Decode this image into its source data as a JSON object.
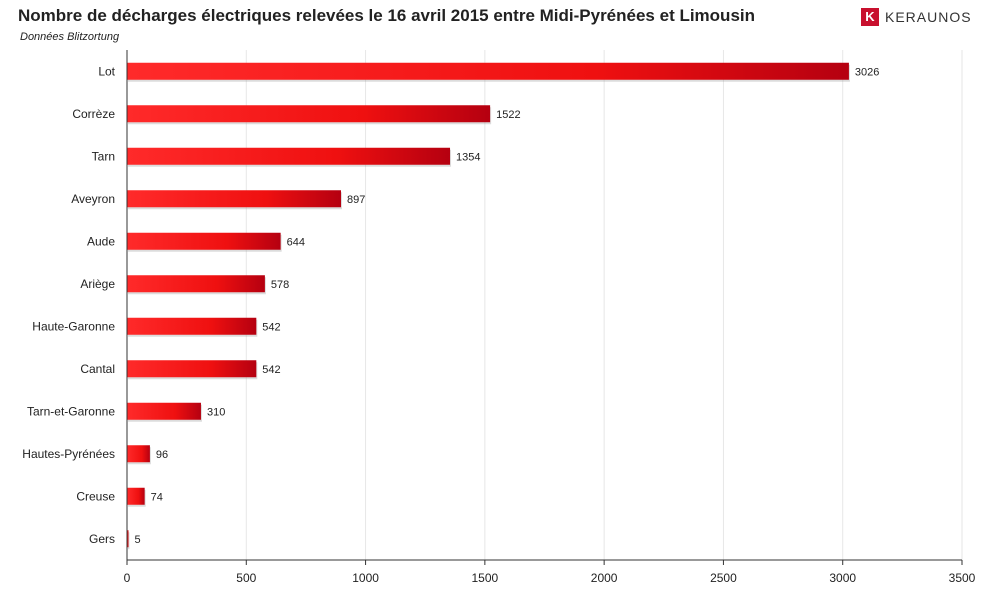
{
  "header": {
    "title": "Nombre de décharges électriques relevées le 16 avril 2015 entre Midi-Pyrénées et Limousin",
    "subtitle": "Données Blitzortung",
    "brand": "KERAUNOS",
    "brand_logo_letter": "K"
  },
  "colors": {
    "bar_light": "#ff2a2a",
    "bar_dark": "#b50010",
    "brand": "#c8102e",
    "grid": "#e6e6e6",
    "axis": "#333333"
  },
  "chart_data": {
    "type": "bar",
    "orientation": "horizontal",
    "title": "Nombre de décharges électriques relevées le 16 avril 2015 entre Midi-Pyrénées et Limousin",
    "subtitle": "Données Blitzortung",
    "categories": [
      "Lot",
      "Corrèze",
      "Tarn",
      "Aveyron",
      "Aude",
      "Ariège",
      "Haute-Garonne",
      "Cantal",
      "Tarn-et-Garonne",
      "Hautes-Pyrénées",
      "Creuse",
      "Gers"
    ],
    "values": [
      3026,
      1522,
      1354,
      897,
      644,
      578,
      542,
      542,
      310,
      96,
      74,
      5
    ],
    "xlim": [
      0,
      3500
    ],
    "xticks": [
      0,
      500,
      1000,
      1500,
      2000,
      2500,
      3000,
      3500
    ],
    "xlabel": "",
    "ylabel": "",
    "grid": "vertical",
    "legend": "none",
    "data_labels": true
  }
}
